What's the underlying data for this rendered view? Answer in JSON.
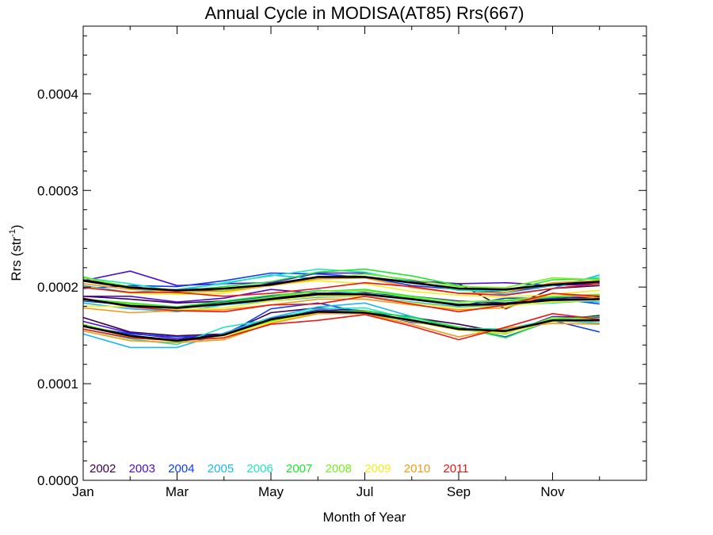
{
  "chart_data": {
    "type": "line",
    "title": "Annual Cycle in MODISA(AT85) Rrs(667)",
    "xlabel": "Month of Year",
    "ylabel_main": "Rrs (str",
    "ylabel_sup": "-1",
    "ylabel_close": ")",
    "xlim": [
      1,
      13
    ],
    "ylim": [
      0,
      0.00047
    ],
    "x_ticks": [
      {
        "value": 1,
        "label": "Jan"
      },
      {
        "value": 3,
        "label": "Mar"
      },
      {
        "value": 5,
        "label": "May"
      },
      {
        "value": 7,
        "label": "Jul"
      },
      {
        "value": 9,
        "label": "Sep"
      },
      {
        "value": 11,
        "label": "Nov"
      }
    ],
    "y_ticks": [
      {
        "value": 0,
        "label": "0.0000"
      },
      {
        "value": 0.0001,
        "label": "0.0001"
      },
      {
        "value": 0.0002,
        "label": "0.0002"
      },
      {
        "value": 0.0003,
        "label": "0.0003"
      },
      {
        "value": 0.0004,
        "label": "0.0004"
      }
    ],
    "x": [
      1,
      2,
      3,
      4,
      5,
      6,
      7,
      8,
      9,
      10,
      11,
      12
    ],
    "series": [
      {
        "name": "2002",
        "color": "#3a0050",
        "upper": [
          0.0002075,
          0.0002005,
          0.0001955,
          0.0001965,
          0.0002035,
          0.0002105,
          0.0002105,
          0.0002055,
          0.0002035,
          0.0001775,
          0.0001985,
          0.0002015
        ],
        "middle": [
          0.0001905,
          0.0001875,
          0.0001835,
          0.0001855,
          0.0001885,
          0.0001935,
          0.0001945,
          0.0001875,
          0.0001815,
          0.0001835,
          0.0001885,
          0.0001895
        ],
        "lower": [
          0.0001685,
          0.0001535,
          0.0001495,
          0.0001515,
          0.0001735,
          0.0001785,
          0.0001755,
          0.0001685,
          0.0001615,
          0.0001525,
          0.0001655,
          0.0001705
        ]
      },
      {
        "name": "2003",
        "color": "#4b0dd1",
        "upper": [
          0.0002065,
          0.0002165,
          0.0002015,
          0.0002035,
          0.0002045,
          0.0002145,
          0.0002145,
          0.0002065,
          0.0002035,
          0.0002045,
          0.0002015,
          0.0002035
        ],
        "middle": [
          0.0001905,
          0.0001905,
          0.0001845,
          0.0001885,
          0.0001975,
          0.0001935,
          0.0001935,
          0.0001905,
          0.0001855,
          0.0001835,
          0.0001875,
          0.0001915
        ],
        "lower": [
          0.0001645,
          0.0001525,
          0.0001465,
          0.0001515,
          0.0001675,
          0.0001765,
          0.0001745,
          0.0001635,
          0.0001585,
          0.0001515,
          0.0001695,
          0.0001685
        ]
      },
      {
        "name": "2004",
        "color": "#0a3df0",
        "upper": [
          0.0001985,
          0.0002015,
          0.0002005,
          0.0002065,
          0.0002145,
          0.0002135,
          0.0002105,
          0.0002015,
          0.0001975,
          0.0001945,
          0.0002015,
          0.0002065
        ],
        "middle": [
          0.0001855,
          0.0001815,
          0.0001785,
          0.0001845,
          0.0001905,
          0.0001965,
          0.0001935,
          0.0001885,
          0.0001805,
          0.0001885,
          0.0001885,
          0.0001825
        ],
        "lower": [
          0.0001595,
          0.0001515,
          0.0001485,
          0.0001495,
          0.0001775,
          0.0001835,
          0.0001735,
          0.0001695,
          0.0001575,
          0.0001485,
          0.0001655,
          0.0001535
        ]
      },
      {
        "name": "2005",
        "color": "#1cb8f0",
        "upper": [
          0.0002015,
          0.0001945,
          0.0001975,
          0.0002035,
          0.0002125,
          0.0002085,
          0.0002095,
          0.0002055,
          0.0001975,
          0.0001925,
          0.0001985,
          0.0002125
        ],
        "middle": [
          0.0001835,
          0.0001775,
          0.0001745,
          0.0001815,
          0.0001855,
          0.0001895,
          0.0001905,
          0.0001845,
          0.0001795,
          0.0001815,
          0.0001865,
          0.0001845
        ],
        "lower": [
          0.0001515,
          0.0001375,
          0.0001375,
          0.0001525,
          0.0001685,
          0.0001795,
          0.0001835,
          0.0001695,
          0.0001565,
          0.0001545,
          0.0001655,
          0.0001625
        ]
      },
      {
        "name": "2006",
        "color": "#21e8b8",
        "upper": [
          0.0002095,
          0.0002035,
          0.0001955,
          0.0002045,
          0.0002115,
          0.0002185,
          0.0002155,
          0.0002055,
          0.0001965,
          0.0001965,
          0.0002015,
          0.0002105
        ],
        "middle": [
          0.0001865,
          0.0001815,
          0.0001775,
          0.0001825,
          0.0001895,
          0.0001965,
          0.0001935,
          0.0001885,
          0.0001825,
          0.0001815,
          0.0001835,
          0.0001865
        ],
        "lower": [
          0.0001565,
          0.0001465,
          0.0001405,
          0.0001585,
          0.0001665,
          0.0001775,
          0.0001785,
          0.0001665,
          0.0001575,
          0.0001565,
          0.0001665,
          0.0001655
        ]
      },
      {
        "name": "2007",
        "color": "#1de62d",
        "upper": [
          0.0002105,
          0.0001985,
          0.0001955,
          0.0002005,
          0.0002055,
          0.0002155,
          0.0002185,
          0.0002115,
          0.0002015,
          0.0001965,
          0.0002075,
          0.0002085
        ],
        "middle": [
          0.0001875,
          0.0001835,
          0.0001795,
          0.0001855,
          0.0001915,
          0.0001955,
          0.0001975,
          0.0001905,
          0.0001845,
          0.0001855,
          0.0001895,
          0.0001915
        ],
        "lower": [
          0.0001605,
          0.0001495,
          0.0001435,
          0.0001505,
          0.0001655,
          0.0001745,
          0.0001755,
          0.0001685,
          0.0001585,
          0.0001475,
          0.0001665,
          0.0001695
        ]
      },
      {
        "name": "2008",
        "color": "#78f020",
        "upper": [
          0.0002095,
          0.0002005,
          0.0001935,
          0.0001965,
          0.0002015,
          0.0002085,
          0.0002135,
          0.0002075,
          0.0002005,
          0.0001995,
          0.0002095,
          0.0002075
        ],
        "middle": [
          0.0001865,
          0.0001825,
          0.0001785,
          0.0001835,
          0.0001895,
          0.0001955,
          0.0001965,
          0.0001895,
          0.0001845,
          0.0001865,
          0.0001905,
          0.0001925
        ],
        "lower": [
          0.0001615,
          0.0001495,
          0.0001445,
          0.0001475,
          0.0001645,
          0.0001735,
          0.0001725,
          0.0001645,
          0.0001555,
          0.0001515,
          0.0001685,
          0.0001665
        ]
      },
      {
        "name": "2009",
        "color": "#f0f020",
        "upper": [
          0.0002005,
          0.0001935,
          0.0001925,
          0.0001935,
          0.0002025,
          0.0002065,
          0.0002035,
          0.0001955,
          0.0001915,
          0.0001895,
          0.0001925,
          0.0001965
        ],
        "middle": [
          0.0001805,
          0.0001795,
          0.0001765,
          0.0001785,
          0.0001855,
          0.0001905,
          0.0001905,
          0.0001835,
          0.0001785,
          0.0001805,
          0.0001845,
          0.0001865
        ],
        "lower": [
          0.0001595,
          0.0001485,
          0.0001445,
          0.0001495,
          0.0001635,
          0.0001735,
          0.0001745,
          0.0001645,
          0.0001555,
          0.0001525,
          0.0001645,
          0.0001645
        ]
      },
      {
        "name": "2010",
        "color": "#f59a14",
        "upper": [
          0.0002035,
          0.0001975,
          0.0001955,
          0.0001955,
          0.0002015,
          0.0002085,
          0.0002095,
          0.0001995,
          0.0001935,
          0.0001945,
          0.0002045,
          0.0002065
        ],
        "middle": [
          0.0001785,
          0.0001735,
          0.0001755,
          0.0001765,
          0.0001815,
          0.0001875,
          0.0001875,
          0.0001815,
          0.0001765,
          0.0001785,
          0.0001935,
          0.0001885
        ],
        "lower": [
          0.0001545,
          0.0001445,
          0.0001425,
          0.0001455,
          0.0001625,
          0.0001725,
          0.0001725,
          0.0001615,
          0.0001485,
          0.0001575,
          0.0001625,
          0.0001615
        ]
      },
      {
        "name": "2011",
        "color": "#ee1414",
        "upper": [
          0.0001995,
          0.0001945,
          0.0001945,
          0.0001905,
          0.0001935,
          0.0001985,
          0.0002045,
          0.0002005,
          0.0001935,
          0.0001915,
          0.0001985,
          0.0002035
        ],
        "middle": [
          0.0001885,
          0.0001795,
          0.0001755,
          0.0001745,
          0.0001815,
          0.0001825,
          0.0001905,
          0.0001825,
          0.0001745,
          0.0001815,
          0.0001935,
          0.0001905
        ],
        "lower": [
          0.0001565,
          0.0001475,
          0.0001445,
          0.0001475,
          0.0001615,
          0.0001655,
          0.0001715,
          0.0001595,
          0.0001455,
          0.0001585,
          0.0001725,
          0.0001665
        ]
      }
    ],
    "mean_lines": {
      "color": "#000000",
      "upper": [
        0.0002065,
        0.0001995,
        0.0001965,
        0.0001985,
        0.0002025,
        0.0002105,
        0.0002105,
        0.0002045,
        0.0001985,
        0.0001975,
        0.0002025,
        0.0002055
      ],
      "middle": [
        0.0001875,
        0.0001805,
        0.0001785,
        0.0001825,
        0.0001875,
        0.0001925,
        0.0001925,
        0.0001875,
        0.0001815,
        0.0001825,
        0.0001865,
        0.0001875
      ],
      "lower": [
        0.0001595,
        0.0001495,
        0.0001445,
        0.0001505,
        0.0001665,
        0.0001745,
        0.0001735,
        0.0001655,
        0.0001565,
        0.0001545,
        0.0001655,
        0.0001655
      ]
    },
    "legend_placement": "bottom-left"
  }
}
